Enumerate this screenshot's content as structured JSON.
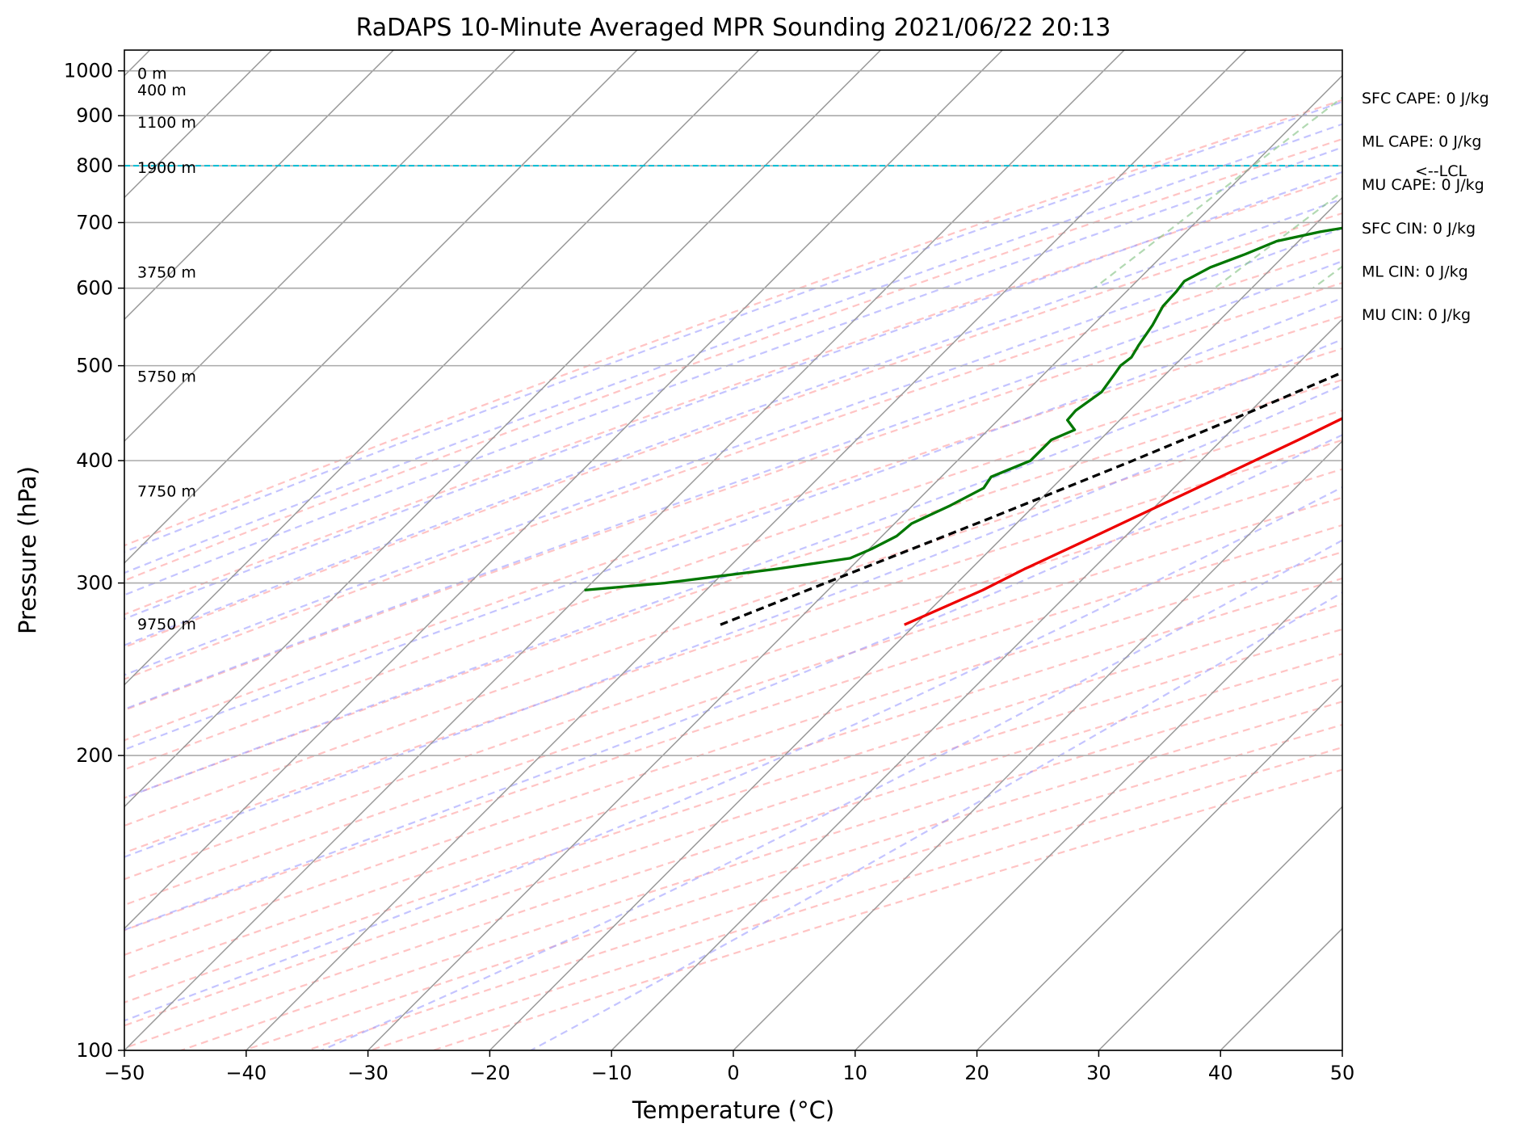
{
  "chart_data": {
    "type": "line",
    "title": "RaDAPS 10-Minute Averaged MPR Sounding 2021/06/22 20:13",
    "xlabel": "Temperature (°C)",
    "ylabel": "Pressure (hPa)",
    "xlim": [
      -50,
      50
    ],
    "ylim": [
      1050,
      100
    ],
    "y_scale": "log",
    "x_ticks": [
      "−50",
      "−40",
      "−30",
      "−20",
      "−10",
      "0",
      "10",
      "20",
      "30",
      "40",
      "50"
    ],
    "y_ticks": [
      {
        "p": 100,
        "label": "100"
      },
      {
        "p": 200,
        "label": "200"
      },
      {
        "p": 300,
        "label": "300"
      },
      {
        "p": 400,
        "label": "400"
      },
      {
        "p": 500,
        "label": "500"
      },
      {
        "p": 600,
        "label": "600"
      },
      {
        "p": 700,
        "label": "700"
      },
      {
        "p": 800,
        "label": "800"
      },
      {
        "p": 900,
        "label": "900"
      },
      {
        "p": 1000,
        "label": "1000"
      }
    ],
    "grid": true,
    "skew": "skew-T log-p",
    "colors": {
      "temperature": "#ee0000",
      "dewpoint": "#007700",
      "parcel": "#000000",
      "lcl": "#00bcd4",
      "dry_adiabat": "#ff9c9c",
      "moist_adiabat": "#9c9cff",
      "mixing_ratio": "#7fbf7f",
      "isotherm": "#999999"
    },
    "series": [
      {
        "points": [
          {
            "p": 990,
            "t": 28.0
          },
          {
            "p": 983,
            "t": 25.0
          },
          {
            "p": 975,
            "t": 23.0
          },
          {
            "p": 965,
            "t": 21.6
          },
          {
            "p": 945,
            "t": 20.5
          },
          {
            "p": 925,
            "t": 20.0
          },
          {
            "p": 905,
            "t": 19.3
          },
          {
            "p": 885,
            "t": 18.6
          },
          {
            "p": 865,
            "t": 18.0
          },
          {
            "p": 850,
            "t": 17.7
          },
          {
            "p": 835,
            "t": 17.6
          },
          {
            "p": 800,
            "t": 16.6
          },
          {
            "p": 760,
            "t": 15.5
          },
          {
            "p": 720,
            "t": 14.2
          },
          {
            "p": 690,
            "t": 13.2
          },
          {
            "p": 650,
            "t": 11.2
          },
          {
            "p": 610,
            "t": 9.1
          },
          {
            "p": 580,
            "t": 7.7
          },
          {
            "p": 550,
            "t": 5.8
          },
          {
            "p": 520,
            "t": 4.8
          },
          {
            "p": 500,
            "t": 2.8
          },
          {
            "p": 470,
            "t": 0.6
          },
          {
            "p": 445,
            "t": -1.6
          },
          {
            "p": 420,
            "t": -3.7
          },
          {
            "p": 400,
            "t": -5.6
          },
          {
            "p": 375,
            "t": -8.1
          },
          {
            "p": 350,
            "t": -10.8
          },
          {
            "p": 330,
            "t": -13.1
          },
          {
            "p": 310,
            "t": -15.6
          },
          {
            "p": 295,
            "t": -17.3
          },
          {
            "p": 272,
            "t": -20.9
          }
        ]
      },
      {
        "points": [
          {
            "p": 992,
            "t": 13.2
          },
          {
            "p": 988,
            "t": 10.5
          },
          {
            "p": 985,
            "t": 8.8
          },
          {
            "p": 975,
            "t": 7.5
          },
          {
            "p": 960,
            "t": 7.9
          },
          {
            "p": 945,
            "t": 8.5
          },
          {
            "p": 935,
            "t": 8.6
          },
          {
            "p": 920,
            "t": 9.2
          },
          {
            "p": 905,
            "t": 10.2
          },
          {
            "p": 893,
            "t": 9.7
          },
          {
            "p": 880,
            "t": 8.5
          },
          {
            "p": 860,
            "t": 7.0
          },
          {
            "p": 840,
            "t": 5.0
          },
          {
            "p": 825,
            "t": 3.1
          },
          {
            "p": 815,
            "t": 2.5
          },
          {
            "p": 800,
            "t": 2.7
          },
          {
            "p": 780,
            "t": 0.4
          },
          {
            "p": 750,
            "t": -6.3
          },
          {
            "p": 725,
            "t": -11.5
          },
          {
            "p": 700,
            "t": -15.3
          },
          {
            "p": 685,
            "t": -19.0
          },
          {
            "p": 670,
            "t": -21.8
          },
          {
            "p": 650,
            "t": -23.3
          },
          {
            "p": 630,
            "t": -25.1
          },
          {
            "p": 610,
            "t": -26.1
          },
          {
            "p": 595,
            "t": -25.9
          },
          {
            "p": 575,
            "t": -25.8
          },
          {
            "p": 550,
            "t": -25.1
          },
          {
            "p": 525,
            "t": -24.6
          },
          {
            "p": 510,
            "t": -24.2
          },
          {
            "p": 500,
            "t": -24.4
          },
          {
            "p": 490,
            "t": -24.2
          },
          {
            "p": 470,
            "t": -23.8
          },
          {
            "p": 450,
            "t": -24.4
          },
          {
            "p": 440,
            "t": -24.3
          },
          {
            "p": 430,
            "t": -22.9
          },
          {
            "p": 420,
            "t": -24.0
          },
          {
            "p": 400,
            "t": -24.0
          },
          {
            "p": 385,
            "t": -25.9
          },
          {
            "p": 375,
            "t": -25.6
          },
          {
            "p": 360,
            "t": -26.9
          },
          {
            "p": 345,
            "t": -28.6
          },
          {
            "p": 335,
            "t": -28.8
          },
          {
            "p": 325,
            "t": -29.8
          },
          {
            "p": 318,
            "t": -30.8
          },
          {
            "p": 310,
            "t": -36.0
          },
          {
            "p": 300,
            "t": -44.0
          },
          {
            "p": 295,
            "t": -50.0
          }
        ]
      },
      {
        "points": [
          {
            "p": 990,
            "t": 28.0
          },
          {
            "p": 960,
            "t": 25.5
          },
          {
            "p": 930,
            "t": 22.9
          },
          {
            "p": 900,
            "t": 20.1
          },
          {
            "p": 870,
            "t": 17.3
          },
          {
            "p": 840,
            "t": 14.4
          },
          {
            "p": 800,
            "t": 14.5
          },
          {
            "p": 750,
            "t": 12.1
          },
          {
            "p": 700,
            "t": 9.4
          },
          {
            "p": 650,
            "t": 6.5
          },
          {
            "p": 600,
            "t": 3.1
          },
          {
            "p": 550,
            "t": -0.6
          },
          {
            "p": 500,
            "t": -4.9
          },
          {
            "p": 450,
            "t": -9.8
          },
          {
            "p": 400,
            "t": -15.6
          },
          {
            "p": 350,
            "t": -22.5
          },
          {
            "p": 300,
            "t": -30.8
          },
          {
            "p": 272,
            "t": -36.0
          }
        ]
      }
    ],
    "lcl": {
      "p": 800,
      "label": "<--LCL"
    },
    "height_labels": [
      {
        "p": 272,
        "label": "9750 m"
      },
      {
        "p": 372,
        "label": "7750 m"
      },
      {
        "p": 487,
        "label": "5750 m"
      },
      {
        "p": 622,
        "label": "3750 m"
      },
      {
        "p": 796,
        "label": "1900 m"
      },
      {
        "p": 885,
        "label": "1100 m"
      },
      {
        "p": 955,
        "label": "400 m"
      },
      {
        "p": 993,
        "label": "0 m"
      }
    ],
    "stats": [
      "SFC CAPE: 0 J/kg",
      "ML CAPE: 0 J/kg",
      "MU CAPE: 0 J/kg",
      "SFC CIN: 0 J/kg",
      "ML CIN: 0 J/kg",
      "MU CIN: 0 J/kg"
    ]
  }
}
